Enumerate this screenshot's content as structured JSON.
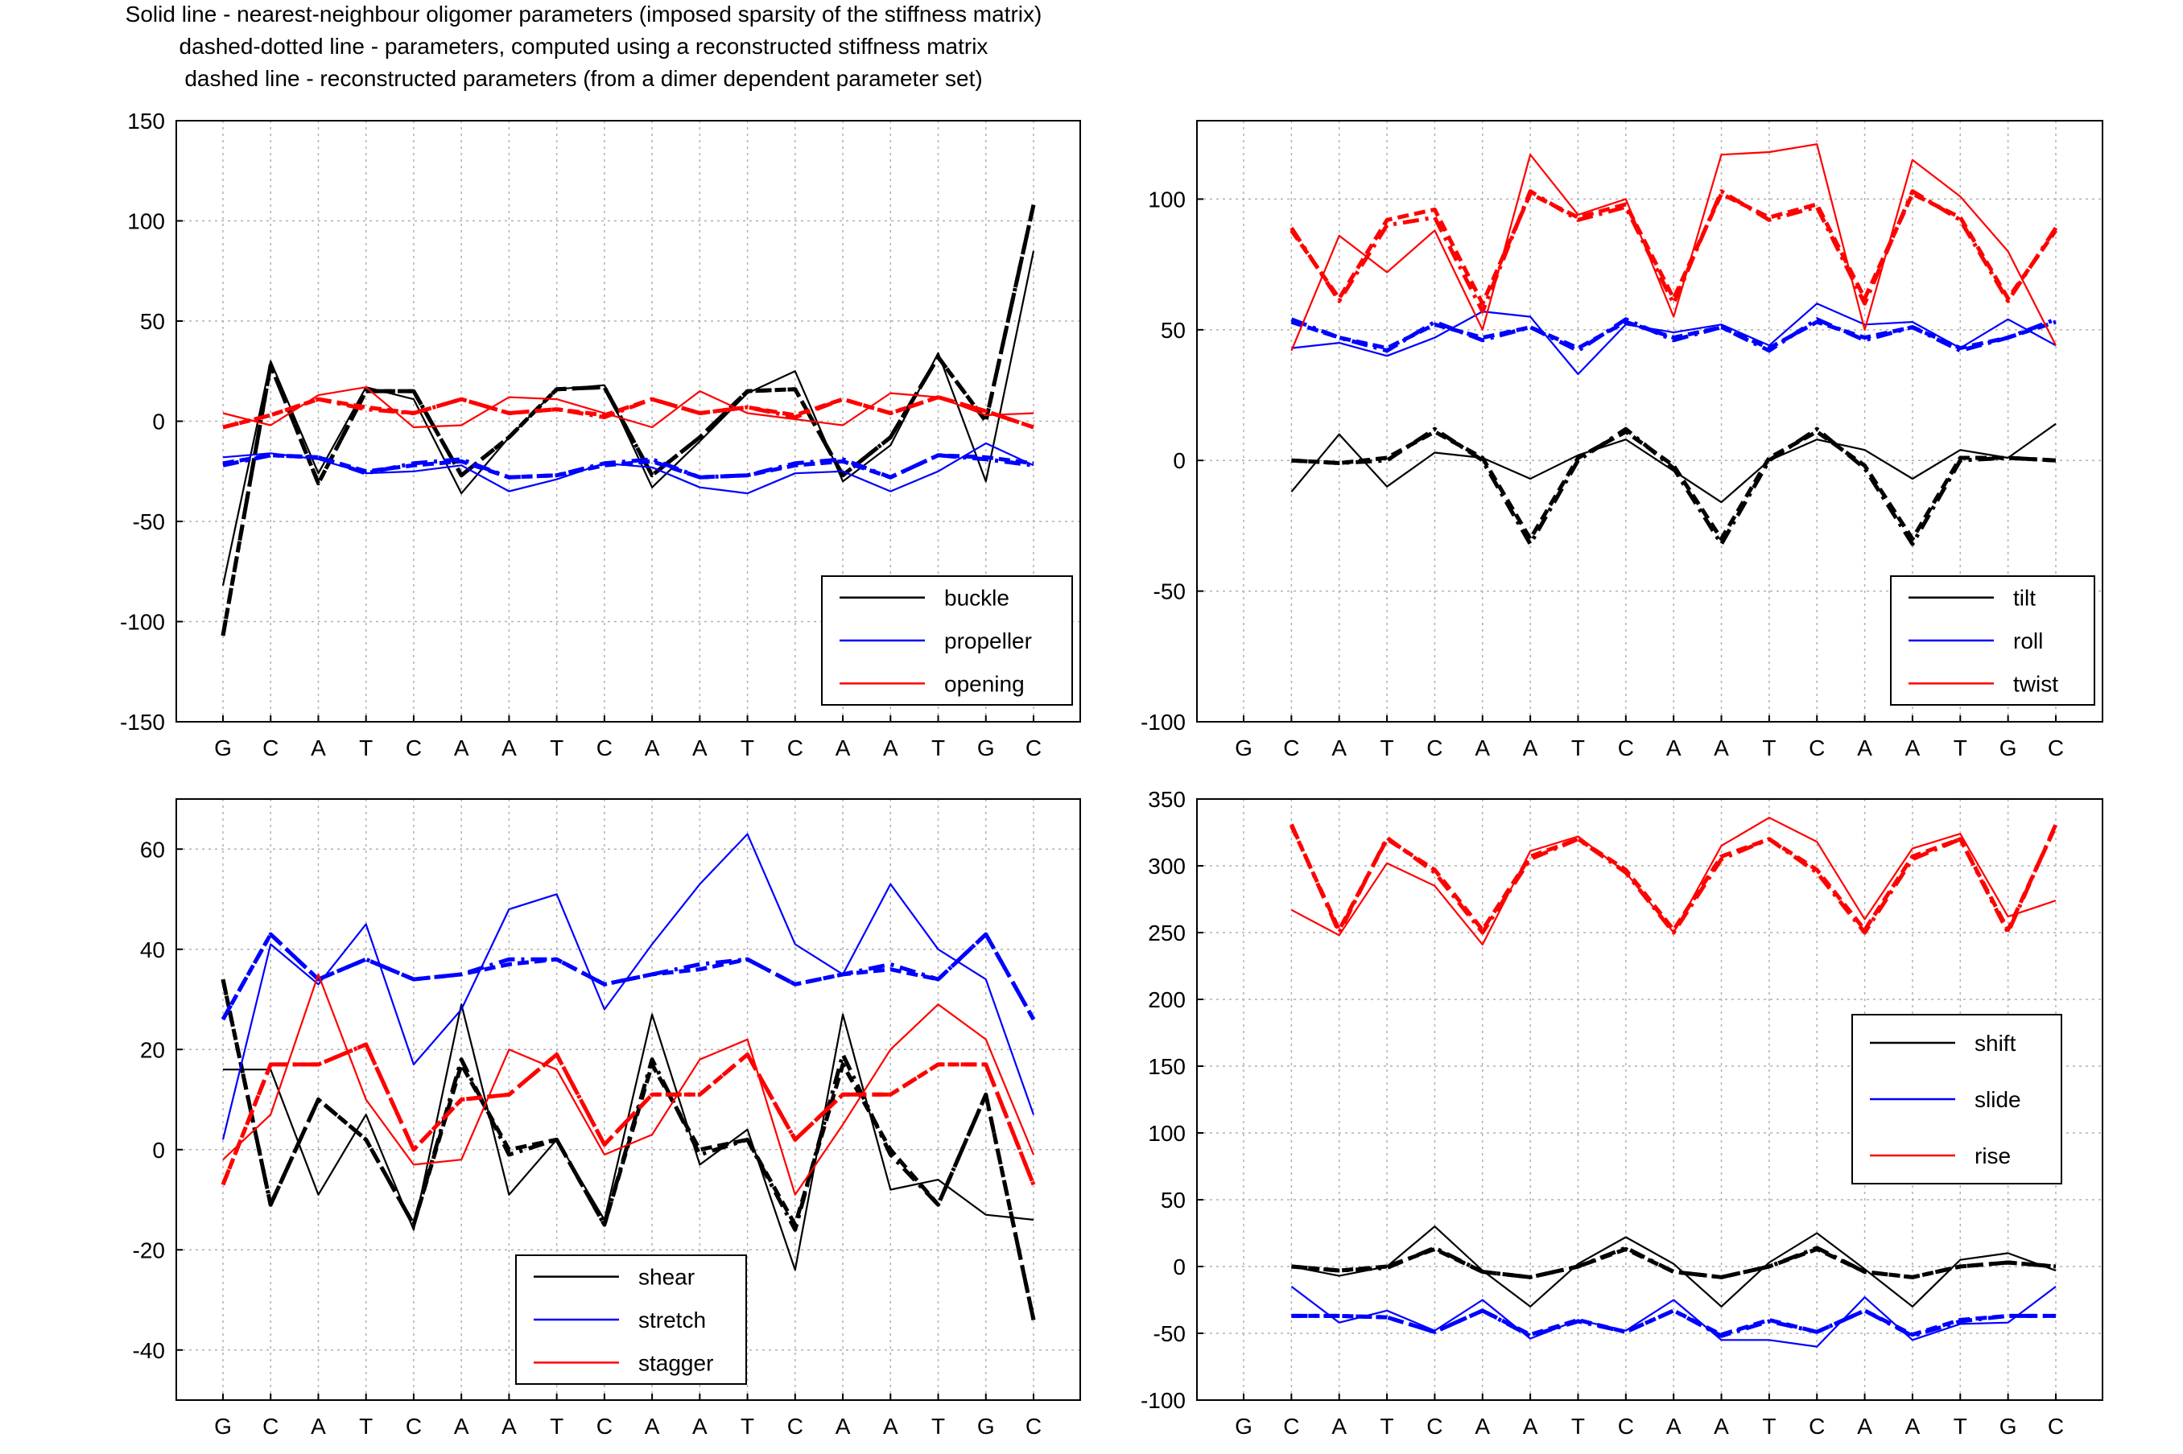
{
  "header": {
    "line1": "Solid line - nearest-neighbour oligomer parameters (imposed sparsity of the stiffness matrix)",
    "line2": "dashed-dotted line - parameters, computed using a reconstructed stiffness matrix",
    "line3": "dashed line - reconstructed parameters (from a dimer dependent parameter set)"
  },
  "styles": {
    "solid": "solid line",
    "dashdot": "dashed-dotted line",
    "dashed": "dashed line"
  },
  "colors": {
    "black": "#000000",
    "blue": "#0000ff",
    "red": "#ff0000",
    "grid": "#b0b0b0"
  },
  "chart_data": [
    {
      "type": "line",
      "sequence": [
        "G",
        "C",
        "A",
        "T",
        "C",
        "A",
        "A",
        "T",
        "C",
        "A",
        "A",
        "T",
        "C",
        "A",
        "A",
        "T",
        "G",
        "C"
      ],
      "x_offset": 0,
      "ylim": [
        -150,
        150
      ],
      "yticks": [
        -150,
        -100,
        -50,
        0,
        50,
        100,
        150
      ],
      "legend": "bottom-right",
      "grid": true,
      "series": [
        {
          "name": "buckle",
          "color": "#000000",
          "solid": [
            -82,
            30,
            -26,
            17,
            11,
            -36,
            -8,
            16,
            18,
            -33,
            -10,
            14,
            25,
            -30,
            -12,
            34,
            -30,
            85
          ],
          "dashdot": [
            -107,
            28,
            -31,
            15,
            15,
            -27,
            -8,
            16,
            17,
            -27,
            -8,
            15,
            16,
            -27,
            -8,
            32,
            0,
            108
          ],
          "dashed": [
            -107,
            28,
            -31,
            15,
            15,
            -27,
            -8,
            16,
            17,
            -27,
            -8,
            15,
            16,
            -27,
            -8,
            32,
            0,
            108
          ]
        },
        {
          "name": "propeller",
          "color": "#0000ff",
          "solid": [
            -18,
            -16,
            -19,
            -26,
            -25,
            -22,
            -35,
            -29,
            -21,
            -23,
            -33,
            -36,
            -26,
            -25,
            -35,
            -25,
            -11,
            -22
          ],
          "dashdot": [
            -22,
            -17,
            -18,
            -26,
            -21,
            -19,
            -28,
            -27,
            -21,
            -19,
            -28,
            -27,
            -21,
            -19,
            -28,
            -17,
            -19,
            -22
          ],
          "dashed": [
            -21,
            -17,
            -18,
            -25,
            -22,
            -20,
            -28,
            -27,
            -22,
            -20,
            -28,
            -27,
            -22,
            -20,
            -28,
            -17,
            -18,
            -21
          ]
        },
        {
          "name": "opening",
          "color": "#ff0000",
          "solid": [
            4,
            -2,
            13,
            17,
            -3,
            -2,
            12,
            11,
            4,
            -3,
            15,
            4,
            1,
            -2,
            14,
            12,
            3,
            4
          ],
          "dashdot": [
            -3,
            3,
            11,
            6,
            4,
            11,
            4,
            6,
            2,
            11,
            4,
            7,
            2,
            11,
            4,
            12,
            5,
            -3
          ],
          "dashed": [
            -3,
            3,
            11,
            7,
            4,
            11,
            4,
            6,
            3,
            11,
            4,
            7,
            3,
            11,
            4,
            12,
            5,
            -3
          ]
        }
      ]
    },
    {
      "type": "line",
      "sequence": [
        "G",
        "C",
        "A",
        "T",
        "C",
        "A",
        "A",
        "T",
        "C",
        "A",
        "A",
        "T",
        "C",
        "A",
        "A",
        "T",
        "G",
        "C"
      ],
      "x_offset": 1,
      "ylim": [
        -100,
        130
      ],
      "yticks": [
        -100,
        -50,
        0,
        50,
        100
      ],
      "legend": "bottom-right",
      "grid": true,
      "series": [
        {
          "name": "tilt",
          "color": "#000000",
          "solid": [
            -12,
            10,
            -10,
            3,
            1,
            -7,
            2,
            8,
            -4,
            -16,
            0,
            8,
            4,
            -7,
            4,
            1,
            14
          ],
          "dashdot": [
            0,
            -1,
            0,
            12,
            0,
            -32,
            0,
            12,
            -3,
            -32,
            0,
            12,
            -3,
            -32,
            0,
            1,
            0
          ],
          "dashed": [
            0,
            -1,
            1,
            11,
            1,
            -30,
            1,
            11,
            -2,
            -30,
            1,
            11,
            -2,
            -30,
            1,
            1,
            0
          ]
        },
        {
          "name": "roll",
          "color": "#0000ff",
          "solid": [
            43,
            45,
            40,
            47,
            57,
            55,
            33,
            52,
            49,
            52,
            44,
            60,
            52,
            53,
            43,
            54,
            44
          ],
          "dashdot": [
            54,
            47,
            42,
            53,
            46,
            51,
            42,
            54,
            46,
            51,
            42,
            54,
            46,
            51,
            42,
            47,
            54
          ],
          "dashed": [
            53,
            47,
            43,
            52,
            47,
            51,
            43,
            53,
            47,
            51,
            43,
            53,
            47,
            51,
            43,
            47,
            53
          ]
        },
        {
          "name": "twist",
          "color": "#ff0000",
          "solid": [
            42,
            86,
            72,
            88,
            50,
            117,
            94,
            100,
            55,
            117,
            118,
            121,
            50,
            115,
            101,
            80,
            44
          ],
          "dashdot": [
            89,
            61,
            90,
            93,
            57,
            103,
            92,
            97,
            60,
            103,
            92,
            97,
            60,
            103,
            92,
            61,
            89
          ],
          "dashed": [
            88,
            62,
            92,
            96,
            60,
            102,
            93,
            98,
            62,
            102,
            93,
            98,
            62,
            102,
            93,
            62,
            88
          ]
        }
      ]
    },
    {
      "type": "line",
      "sequence": [
        "G",
        "C",
        "A",
        "T",
        "C",
        "A",
        "A",
        "T",
        "C",
        "A",
        "A",
        "T",
        "C",
        "A",
        "A",
        "T",
        "G",
        "C"
      ],
      "x_offset": 0,
      "ylim": [
        -50,
        70
      ],
      "yticks": [
        -40,
        -20,
        0,
        20,
        40,
        60
      ],
      "legend": "bottom-center",
      "grid": true,
      "series": [
        {
          "name": "shear",
          "color": "#000000",
          "solid": [
            16,
            16,
            -9,
            7,
            -16,
            29,
            -9,
            2,
            -14,
            27,
            -3,
            4,
            -24,
            27,
            -8,
            -6,
            -13,
            -14
          ],
          "dashdot": [
            34,
            -11,
            10,
            2,
            -15,
            18,
            -1,
            2,
            -15,
            18,
            -1,
            2,
            -16,
            19,
            -1,
            -11,
            11,
            -34
          ],
          "dashed": [
            34,
            -11,
            10,
            2,
            -15,
            17,
            0,
            2,
            -15,
            17,
            0,
            2,
            -15,
            17,
            0,
            -11,
            11,
            -34
          ]
        },
        {
          "name": "stretch",
          "color": "#0000ff",
          "solid": [
            2,
            41,
            33,
            45,
            17,
            28,
            48,
            51,
            28,
            41,
            53,
            63,
            41,
            35,
            53,
            40,
            34,
            7
          ],
          "dashdot": [
            26,
            43,
            34,
            38,
            34,
            35,
            38,
            38,
            33,
            35,
            37,
            38,
            33,
            35,
            37,
            34,
            43,
            26
          ],
          "dashed": [
            26,
            43,
            34,
            38,
            34,
            35,
            37,
            38,
            33,
            35,
            36,
            38,
            33,
            35,
            36,
            34,
            43,
            26
          ]
        },
        {
          "name": "stagger",
          "color": "#ff0000",
          "solid": [
            -2,
            7,
            35,
            10,
            -3,
            -2,
            20,
            16,
            -1,
            3,
            18,
            22,
            -9,
            5,
            20,
            29,
            22,
            -1
          ],
          "dashdot": [
            -7,
            17,
            17,
            21,
            0,
            10,
            11,
            19,
            1,
            11,
            11,
            19,
            2,
            11,
            11,
            17,
            17,
            -7
          ],
          "dashed": [
            -7,
            17,
            17,
            21,
            0,
            10,
            11,
            19,
            1,
            11,
            11,
            19,
            2,
            11,
            11,
            17,
            17,
            -7
          ]
        }
      ]
    },
    {
      "type": "line",
      "sequence": [
        "G",
        "C",
        "A",
        "T",
        "C",
        "A",
        "A",
        "T",
        "C",
        "A",
        "A",
        "T",
        "C",
        "A",
        "A",
        "T",
        "G",
        "C"
      ],
      "x_offset": 1,
      "ylim": [
        -100,
        350
      ],
      "yticks": [
        -100,
        -50,
        0,
        50,
        100,
        150,
        200,
        250,
        300,
        350
      ],
      "legend": "center-right",
      "grid": true,
      "series": [
        {
          "name": "shift",
          "color": "#000000",
          "solid": [
            0,
            -7,
            0,
            30,
            -3,
            -30,
            2,
            22,
            2,
            -30,
            3,
            25,
            -2,
            -30,
            5,
            10,
            -3
          ],
          "dashdot": [
            0,
            -3,
            -1,
            14,
            -4,
            -8,
            0,
            14,
            -4,
            -8,
            0,
            14,
            -4,
            -8,
            0,
            3,
            0
          ],
          "dashed": [
            0,
            -3,
            0,
            13,
            -4,
            -8,
            0,
            13,
            -4,
            -8,
            0,
            13,
            -4,
            -8,
            0,
            3,
            0
          ]
        },
        {
          "name": "slide",
          "color": "#0000ff",
          "solid": [
            -15,
            -42,
            -33,
            -48,
            -25,
            -54,
            -40,
            -48,
            -25,
            -55,
            -55,
            -60,
            -23,
            -55,
            -43,
            -42,
            -15
          ],
          "dashdot": [
            -37,
            -37,
            -38,
            -49,
            -33,
            -52,
            -41,
            -49,
            -33,
            -52,
            -41,
            -49,
            -33,
            -52,
            -41,
            -37,
            -37
          ],
          "dashed": [
            -37,
            -37,
            -38,
            -49,
            -33,
            -51,
            -40,
            -49,
            -33,
            -51,
            -40,
            -49,
            -33,
            -51,
            -40,
            -37,
            -37
          ]
        },
        {
          "name": "rise",
          "color": "#ff0000",
          "solid": [
            267,
            248,
            302,
            285,
            241,
            311,
            322,
            295,
            250,
            315,
            336,
            318,
            260,
            313,
            324,
            262,
            274
          ],
          "dashdot": [
            331,
            250,
            321,
            295,
            250,
            305,
            320,
            295,
            250,
            305,
            320,
            295,
            250,
            305,
            320,
            250,
            331
          ],
          "dashed": [
            330,
            252,
            320,
            297,
            252,
            307,
            320,
            297,
            252,
            307,
            320,
            297,
            252,
            307,
            320,
            252,
            330
          ]
        }
      ]
    }
  ]
}
